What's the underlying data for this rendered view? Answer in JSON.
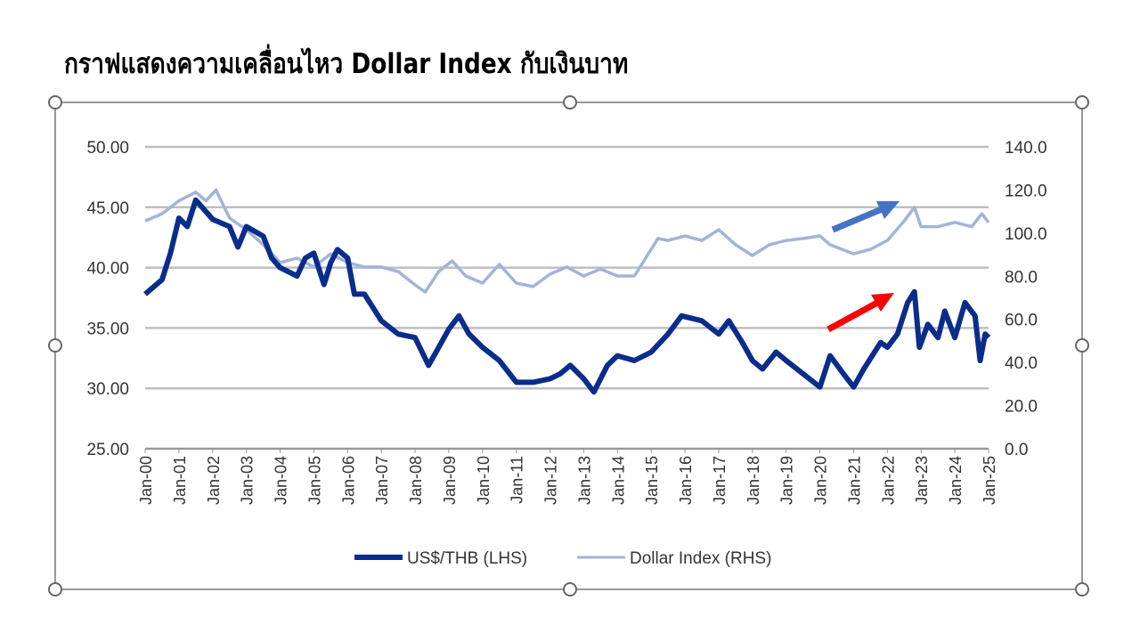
{
  "title": "กราฟแสดงความเคลื่อนไหว Dollar Index กับเงินบาท",
  "chart_data": {
    "type": "line",
    "title": "กราฟแสดงความเคลื่อนไหว Dollar Index กับเงินบาท",
    "x_tick_labels": [
      "Jan-00",
      "Jan-01",
      "Jan-02",
      "Jan-03",
      "Jan-04",
      "Jan-05",
      "Jan-06",
      "Jan-07",
      "Jan-08",
      "Jan-09",
      "Jan-10",
      "Jan-11",
      "Jan-12",
      "Jan-13",
      "Jan-14",
      "Jan-15",
      "Jan-16",
      "Jan-17",
      "Jan-18",
      "Jan-19",
      "Jan-20",
      "Jan-21",
      "Jan-22",
      "Jan-23",
      "Jan-24",
      "Jan-25"
    ],
    "x_range": [
      2000,
      2025
    ],
    "y_left": {
      "range": [
        25,
        50
      ],
      "ticks": [
        "25.00",
        "30.00",
        "35.00",
        "40.00",
        "45.00",
        "50.00"
      ]
    },
    "y_right": {
      "range": [
        0,
        140
      ],
      "ticks": [
        "0.0",
        "20.0",
        "40.0",
        "60.0",
        "80.0",
        "100.0",
        "120.0",
        "140.0"
      ]
    },
    "grid": true,
    "legend_position": "bottom",
    "series": [
      {
        "name": "US$/THB (LHS)",
        "axis": "left",
        "color": "#0a2d8c",
        "x": [
          2000,
          2000.5,
          2000.75,
          2001,
          2001.25,
          2001.5,
          2001.75,
          2002,
          2002.5,
          2002.75,
          2003,
          2003.5,
          2003.75,
          2004,
          2004.5,
          2004.75,
          2005,
          2005.3,
          2005.5,
          2005.7,
          2006,
          2006.2,
          2006.5,
          2007,
          2007.5,
          2008,
          2008.4,
          2008.7,
          2009,
          2009.3,
          2009.6,
          2010,
          2010.5,
          2011,
          2011.5,
          2012,
          2012.3,
          2012.6,
          2013,
          2013.3,
          2013.7,
          2014,
          2014.5,
          2015,
          2015.5,
          2015.9,
          2016.5,
          2017,
          2017.3,
          2017.7,
          2018,
          2018.3,
          2018.7,
          2019,
          2019.5,
          2020,
          2020.3,
          2020.7,
          2021,
          2021.3,
          2021.8,
          2022,
          2022.3,
          2022.6,
          2022.8,
          2022.95,
          2023.2,
          2023.5,
          2023.7,
          2024,
          2024.3,
          2024.6,
          2024.75,
          2024.9,
          2025
        ],
        "values": [
          37.8,
          39,
          41.2,
          44.1,
          43.4,
          45.6,
          44.8,
          44,
          43.4,
          41.7,
          43.4,
          42.6,
          40.8,
          40,
          39.3,
          40.8,
          41.2,
          38.6,
          40.4,
          41.5,
          40.8,
          37.8,
          37.8,
          35.6,
          34.5,
          34.2,
          31.9,
          33.4,
          34.9,
          36,
          34.5,
          33.4,
          32.3,
          30.5,
          30.5,
          30.8,
          31.2,
          31.9,
          30.8,
          29.7,
          31.9,
          32.7,
          32.3,
          33,
          34.5,
          36,
          35.6,
          34.5,
          35.6,
          33.8,
          32.3,
          31.6,
          33,
          32.3,
          31.2,
          30.1,
          32.7,
          31.2,
          30.1,
          31.6,
          33.8,
          33.4,
          34.5,
          37.1,
          38,
          33.4,
          35.3,
          34.2,
          36.4,
          34.2,
          37.1,
          36,
          32.3,
          34.5,
          34.2
        ]
      },
      {
        "name": "Dollar Index (RHS)",
        "axis": "right",
        "color": "#a3b3d9",
        "x": [
          2000,
          2000.5,
          2001,
          2001.5,
          2001.8,
          2002.1,
          2002.5,
          2003,
          2003.5,
          2004,
          2004.5,
          2005,
          2005.5,
          2006,
          2006.5,
          2007,
          2007.5,
          2008,
          2008.3,
          2008.7,
          2009.1,
          2009.5,
          2010,
          2010.5,
          2011,
          2011.5,
          2012,
          2012.5,
          2013,
          2013.5,
          2014,
          2014.5,
          2015,
          2015.2,
          2015.5,
          2016,
          2016.5,
          2017,
          2017.5,
          2018,
          2018.5,
          2019,
          2019.5,
          2020,
          2020.3,
          2021,
          2021.5,
          2022,
          2022.5,
          2022.8,
          2023,
          2023.5,
          2024,
          2024.5,
          2024.8,
          2025
        ],
        "values": [
          105.7,
          109,
          115,
          119,
          115,
          120,
          107,
          101.6,
          94.6,
          86.3,
          88.4,
          84.3,
          90.4,
          86.3,
          84.3,
          84.3,
          82.2,
          76,
          72.7,
          82.2,
          87.1,
          80.1,
          76.8,
          85.5,
          76.8,
          75.2,
          81,
          84.3,
          80.1,
          83.4,
          80.1,
          80.1,
          92.5,
          97.5,
          96.6,
          98.7,
          96.6,
          101.6,
          94.6,
          89.6,
          94.6,
          96.6,
          97.5,
          98.7,
          94.6,
          90.4,
          92.5,
          96.6,
          105.7,
          112,
          103,
          103,
          105,
          103,
          109,
          105
        ]
      }
    ],
    "annotations": [
      {
        "type": "arrow",
        "color": "#4472c4",
        "target": "Dollar Index rising 2020-2022"
      },
      {
        "type": "arrow",
        "color": "#ff0000",
        "target": "US$/THB rising 2020-2022"
      }
    ]
  }
}
